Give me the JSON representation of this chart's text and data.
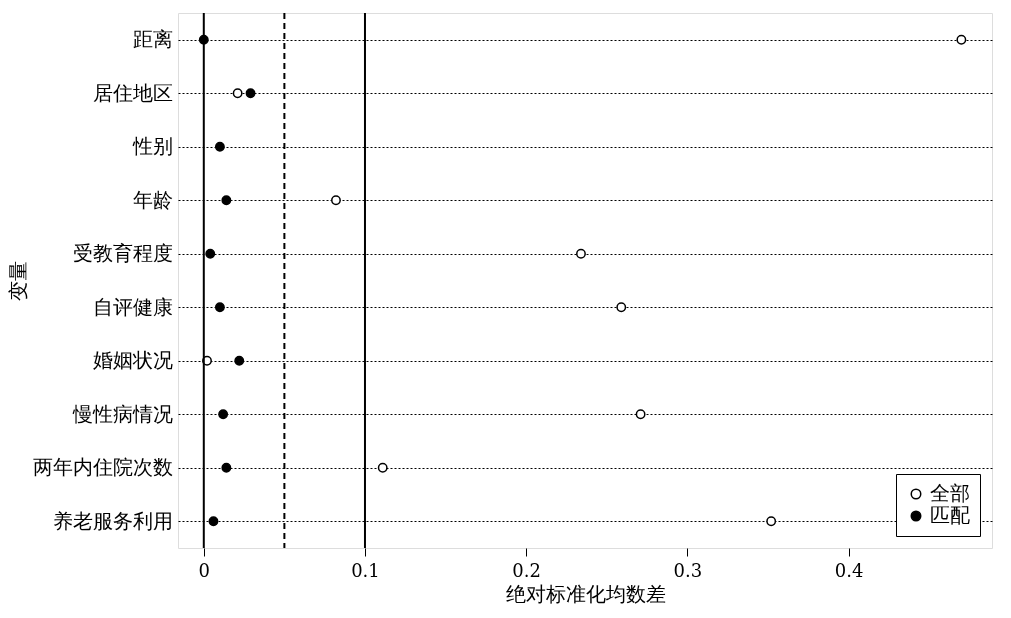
{
  "chart_data": {
    "type": "scatter",
    "xlabel": "绝对标准化均数差",
    "ylabel": "变量",
    "categories": [
      "距离",
      "居住地区",
      "性别",
      "年龄",
      "受教育程度",
      "自评健康",
      "婚姻状况",
      "慢性病情况",
      "两年内住院次数",
      "养老服务利用"
    ],
    "series": [
      {
        "name": "全部",
        "color": "#ffffff",
        "values": [
          0.47,
          0.021,
          null,
          0.082,
          0.234,
          0.259,
          0.002,
          0.271,
          0.111,
          0.352
        ]
      },
      {
        "name": "匹配",
        "color": "#000000",
        "values": [
          0.0,
          0.029,
          0.01,
          0.014,
          0.004,
          0.01,
          0.022,
          0.012,
          0.014,
          0.006
        ]
      }
    ],
    "xlim": [
      -0.016,
      0.489
    ],
    "xticks": [
      0,
      0.1,
      0.2,
      0.3,
      0.4
    ],
    "ref_lines": [
      {
        "axis": "x",
        "value": 0,
        "color": "#000000",
        "line_style": "solid"
      },
      {
        "axis": "x",
        "value": 0.05,
        "color": "#000000",
        "line_style": "dashed"
      },
      {
        "axis": "x",
        "value": 0.1,
        "color": "#000000",
        "line_style": "solid"
      }
    ],
    "orientation": "horizontal",
    "grid": "y",
    "legend": "bottom right",
    "marker": "circle"
  }
}
